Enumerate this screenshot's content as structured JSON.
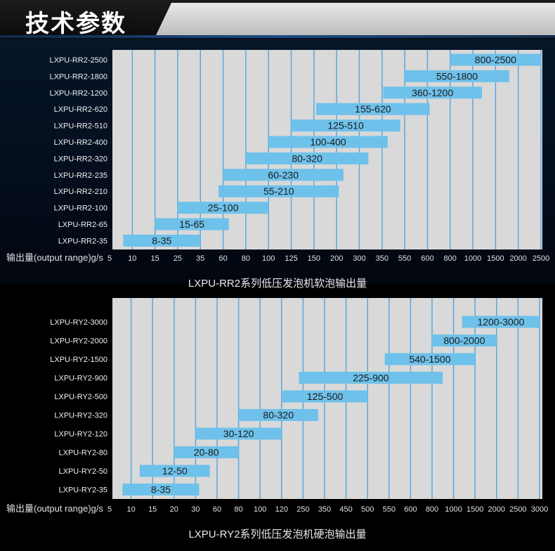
{
  "header": {
    "title": "技术参数"
  },
  "colors": {
    "bar": "#6ec1ea",
    "plot": "#d9d9d9",
    "grid": "#5ba7dd"
  },
  "chart_data": [
    {
      "type": "bar",
      "orientation": "horizontal-range",
      "title": "LXPU-RR2系列低压发泡机软泡输出量",
      "xlabel": "输出量(output range)g/s",
      "x_ticks": [
        "5",
        "10",
        "15",
        "25",
        "35",
        "60",
        "80",
        "100",
        "125",
        "150",
        "200",
        "300",
        "350",
        "550",
        "600",
        "800",
        "1000",
        "1500",
        "2000",
        "2500"
      ],
      "categories": [
        "LXPU-RR2-2500",
        "LXPU-RR2-1800",
        "LXPU-RR2-1200",
        "LXPU-RR2-620",
        "LXPU-RR2-510",
        "LXPU-RR2-400",
        "LXPU-RR2-320",
        "LXPU-RR2-235",
        "LXPU-RR2-210",
        "LXPU-RR2-100",
        "LXPU-RR2-65",
        "LXPU-RR2-35"
      ],
      "ranges": [
        [
          800,
          2500
        ],
        [
          550,
          1800
        ],
        [
          360,
          1200
        ],
        [
          155,
          620
        ],
        [
          125,
          510
        ],
        [
          100,
          400
        ],
        [
          80,
          320
        ],
        [
          60,
          230
        ],
        [
          55,
          210
        ],
        [
          25,
          100
        ],
        [
          15,
          65
        ],
        [
          8,
          35
        ]
      ],
      "labels": [
        "800-2500",
        "550-1800",
        "360-1200",
        "155-620",
        "125-510",
        "100-400",
        "80-320",
        "60-230",
        "55-210",
        "25-100",
        "15-65",
        "8-35"
      ],
      "grid": true
    },
    {
      "type": "bar",
      "orientation": "horizontal-range",
      "title": "LXPU-RY2系列低压发泡机硬泡输出量",
      "xlabel": "输出量(output range)g/s",
      "x_ticks": [
        "5",
        "10",
        "15",
        "20",
        "30",
        "60",
        "80",
        "100",
        "120",
        "250",
        "350",
        "450",
        "500",
        "550",
        "600",
        "800",
        "1000",
        "1500",
        "2000",
        "2500",
        "3000"
      ],
      "categories": [
        "LXPU-RY2-3000",
        "LXPU-RY2-2000",
        "LXPU-RY2-1500",
        "LXPU-RY2-900",
        "LXPU-RY2-500",
        "LXPU-RY2-320",
        "LXPU-RY2-120",
        "LXPU-RY2-80",
        "LXPU-RY2-50",
        "LXPU-RY2-35"
      ],
      "ranges": [
        [
          1200,
          3000
        ],
        [
          800,
          2000
        ],
        [
          540,
          1500
        ],
        [
          225,
          900
        ],
        [
          125,
          500
        ],
        [
          80,
          320
        ],
        [
          30,
          120
        ],
        [
          20,
          80
        ],
        [
          12,
          50
        ],
        [
          8,
          35
        ]
      ],
      "labels": [
        "1200-3000",
        "800-2000",
        "540-1500",
        "225-900",
        "125-500",
        "80-320",
        "30-120",
        "20-80",
        "12-50",
        "8-35"
      ],
      "grid": true
    }
  ]
}
